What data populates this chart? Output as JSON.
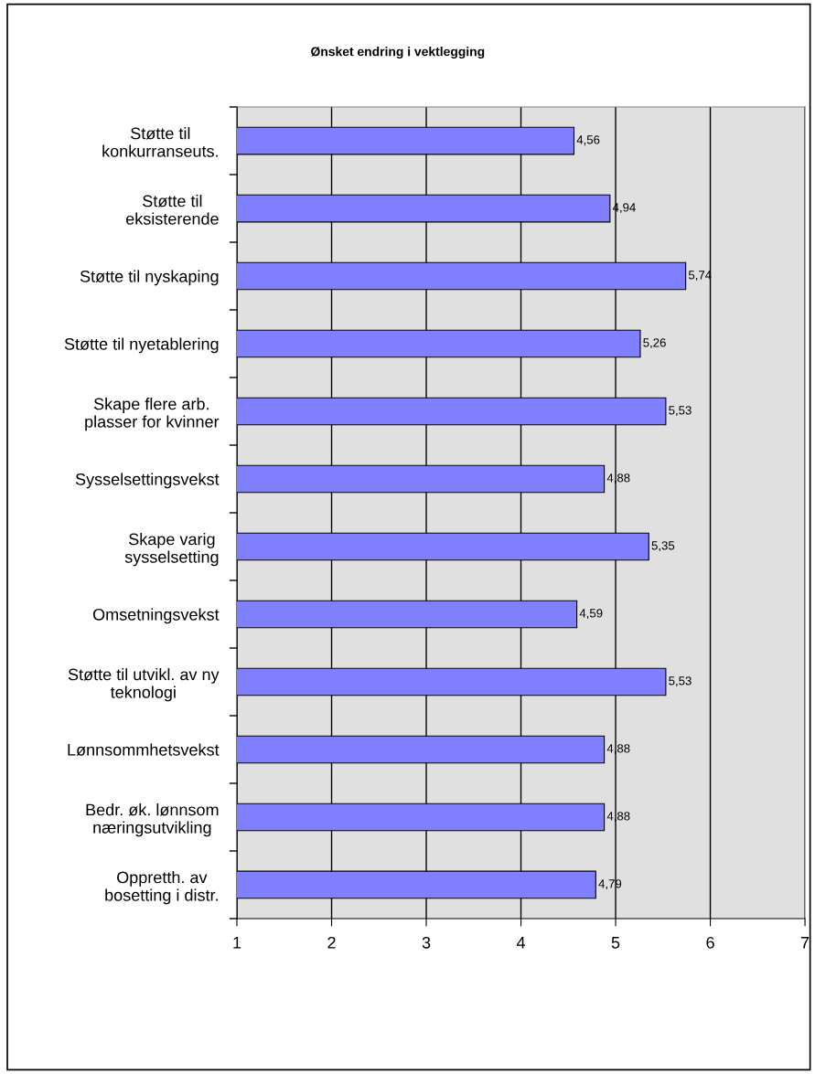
{
  "chart_data": {
    "type": "bar",
    "orientation": "horizontal",
    "title": "Ønsket endring i vektlegging",
    "categories": [
      "Støtte til\nkonkurranseuts.",
      "Støtte til\neksisterende",
      "Støtte til nyskaping",
      "Støtte til nyetablering",
      "Skape flere arb.\nplasser for kvinner",
      "Sysselsettingsvekst",
      "Skape varig\nsysselsetting",
      "Omsetningsvekst",
      "Støtte til utvikl. av ny\nteknologi",
      "Lønnsommhetsvekst",
      "Bedr. øk. lønnsom\nnæringsutvikling",
      "Oppretth. av\nbosetting i distr."
    ],
    "values": [
      4.56,
      4.94,
      5.74,
      5.26,
      5.53,
      4.88,
      5.35,
      4.59,
      5.53,
      4.88,
      4.88,
      4.79
    ],
    "value_labels": [
      "4,56",
      "4,94",
      "5,74",
      "5,26",
      "5,53",
      "4,88",
      "5,35",
      "4,59",
      "5,53",
      "4,88",
      "4,88",
      "4,79"
    ],
    "color": "#8080ff",
    "xlim": [
      1,
      7
    ],
    "xticks": [
      1,
      2,
      3,
      4,
      5,
      6,
      7
    ],
    "grid": "x"
  }
}
